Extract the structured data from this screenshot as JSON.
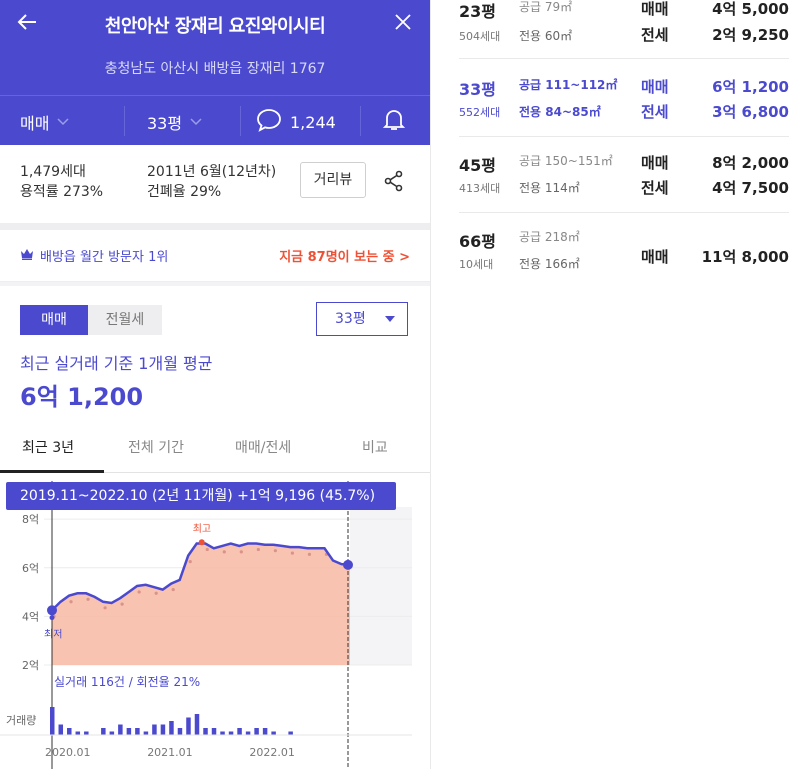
{
  "header": {
    "title": "천안아산 장재리 요진와이시티",
    "address": "충청남도 아산시 배방읍 장재리 1767",
    "trade_type": "매매",
    "size": "33평",
    "comment_count": "1,244",
    "colors": {
      "primary": "#4b4acf",
      "accent": "#ee5135"
    }
  },
  "summary": {
    "households": "1,479세대",
    "floor_area_ratio": "용적률 273%",
    "completion": "2011년 6월(12년차)",
    "coverage_ratio": "건폐율 29%",
    "street_view_button": "거리뷰"
  },
  "visitor": {
    "rank": "배방읍 월간 방문자 1위",
    "viewing_now": "지금 87명이 보는 중 >"
  },
  "price": {
    "segment_active": "매매",
    "segment_inactive": "전월세",
    "size_select": "33평",
    "average_label": "최근 실거래 기준 1개월 평균",
    "average_value": "6억 1,200"
  },
  "tabs": [
    "최근 3년",
    "전체 기간",
    "매매/전세",
    "비교"
  ],
  "chart_data": {
    "type": "area",
    "tooltip": "2019.11~2022.10 (2년 11개월)  +1억 9,196 (45.7%)",
    "y_tick_labels": [
      "2억",
      "4억",
      "6억",
      "8억"
    ],
    "ylim": [
      2,
      8.5
    ],
    "x_tick_labels": [
      "2020.01",
      "2021.01",
      "2022.01"
    ],
    "x_ticks_months": [
      2,
      14,
      26
    ],
    "xlim_months": [
      0,
      35
    ],
    "unit_note": "months since 2019.11, price in 억",
    "series": [
      {
        "name": "매매",
        "x": [
          0,
          1,
          2,
          3,
          4,
          5,
          6,
          7,
          8,
          9,
          10,
          11,
          12,
          13,
          14,
          15,
          16,
          17,
          18,
          19,
          20,
          21,
          22,
          23,
          24,
          25,
          26,
          27,
          28,
          29,
          30,
          31,
          32,
          33,
          34,
          35
        ],
        "values": [
          4.25,
          4.6,
          4.85,
          4.95,
          4.95,
          4.8,
          4.6,
          4.55,
          4.75,
          5.0,
          5.25,
          5.3,
          5.2,
          5.1,
          5.35,
          5.5,
          6.5,
          7.0,
          7.0,
          6.8,
          6.9,
          7.0,
          6.9,
          7.0,
          7.0,
          6.95,
          6.95,
          6.9,
          6.85,
          6.85,
          6.8,
          6.8,
          6.8,
          6.3,
          6.15,
          6.12
        ]
      }
    ],
    "annotations": {
      "high": "최고",
      "low": "최저"
    },
    "volume_label": "거래량",
    "volume_summary": "실거래 116건 / 회전율 21%",
    "volume": [
      8,
      3,
      2,
      1,
      1,
      0,
      2,
      1,
      3,
      2,
      2,
      1,
      3,
      3,
      4,
      2,
      5,
      6,
      2,
      2,
      1,
      1,
      2,
      1,
      2,
      2,
      1,
      0,
      1,
      0,
      0,
      0,
      0,
      0,
      0,
      0
    ]
  },
  "pyeong_list": [
    {
      "py": "23평",
      "households": "504세대",
      "supply": "공급 79㎡",
      "exclusive": "전용 60㎡",
      "sale_label": "매매",
      "sale_price": "4억 5,000",
      "jeonse_label": "전세",
      "jeonse_price": "2억 9,250",
      "selected": false
    },
    {
      "py": "33평",
      "households": "552세대",
      "supply": "공급 111~112㎡",
      "exclusive": "전용 84~85㎡",
      "sale_label": "매매",
      "sale_price": "6억 1,200",
      "jeonse_label": "전세",
      "jeonse_price": "3억 6,800",
      "selected": true
    },
    {
      "py": "45평",
      "households": "413세대",
      "supply": "공급 150~151㎡",
      "exclusive": "전용 114㎡",
      "sale_label": "매매",
      "sale_price": "8억 2,000",
      "jeonse_label": "전세",
      "jeonse_price": "4억 7,500",
      "selected": false
    },
    {
      "py": "66평",
      "households": "10세대",
      "supply": "공급 218㎡",
      "exclusive": "전용 166㎡",
      "sale_label": "매매",
      "sale_price": "11억 8,000",
      "selected": false
    }
  ]
}
